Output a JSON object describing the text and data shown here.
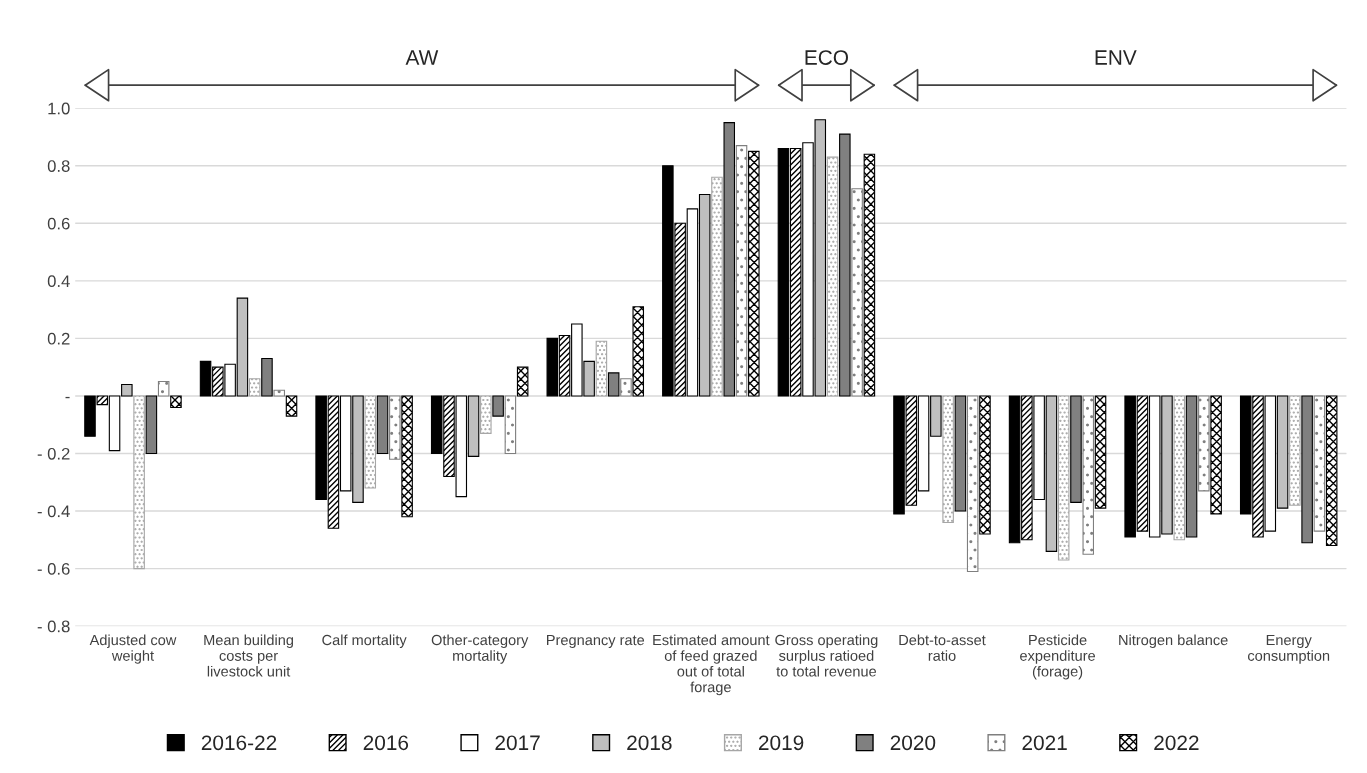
{
  "chart_data": {
    "type": "bar",
    "categories": [
      "Adjusted cow weight",
      "Mean building costs per livestock unit",
      "Calf mortality",
      "Other-category mortality",
      "Pregnancy rate",
      "Estimated amount of feed grazed out of total forage",
      "Gross operating surplus ratioed to total revenue",
      "Debt-to-asset ratio",
      "Pesticide expenditure (forage)",
      "Nitrogen balance",
      "Energy consumption"
    ],
    "series": [
      {
        "name": "2016-22",
        "color": "#000000",
        "values": [
          -0.14,
          0.12,
          -0.36,
          -0.2,
          0.2,
          0.8,
          0.86,
          -0.41,
          -0.51,
          -0.49,
          -0.41
        ]
      },
      {
        "name": "2016",
        "color": "#000000",
        "values": [
          -0.03,
          0.1,
          -0.46,
          -0.28,
          0.21,
          0.6,
          0.86,
          -0.38,
          -0.5,
          -0.47,
          -0.49
        ]
      },
      {
        "name": "2017",
        "color": "#ffffff",
        "values": [
          -0.19,
          0.11,
          -0.33,
          -0.35,
          0.25,
          0.65,
          0.88,
          -0.33,
          -0.36,
          -0.49,
          -0.47
        ]
      },
      {
        "name": "2018",
        "color": "#bfbfbf",
        "values": [
          0.04,
          0.34,
          -0.37,
          -0.21,
          0.12,
          0.7,
          0.96,
          -0.14,
          -0.54,
          -0.48,
          -0.39
        ]
      },
      {
        "name": "2019",
        "color": "#a6a6a6",
        "values": [
          -0.6,
          0.06,
          -0.32,
          -0.13,
          0.19,
          0.76,
          0.83,
          -0.44,
          -0.57,
          -0.5,
          -0.38
        ]
      },
      {
        "name": "2020",
        "color": "#808080",
        "values": [
          -0.2,
          0.13,
          -0.2,
          -0.07,
          0.08,
          0.95,
          0.91,
          -0.4,
          -0.37,
          -0.49,
          -0.51
        ]
      },
      {
        "name": "2021",
        "color": "#7f7f7f",
        "values": [
          0.05,
          0.02,
          -0.22,
          -0.2,
          0.06,
          0.87,
          0.72,
          -0.61,
          -0.55,
          -0.33,
          -0.47
        ]
      },
      {
        "name": "2022",
        "color": "#000000",
        "values": [
          -0.04,
          -0.07,
          -0.42,
          0.1,
          0.31,
          0.85,
          0.84,
          -0.48,
          -0.39,
          -0.41,
          -0.52
        ]
      }
    ],
    "ylim": [
      -0.8,
      1.0
    ],
    "yticks": [
      {
        "value": -0.8,
        "label": "- 0.8"
      },
      {
        "value": -0.6,
        "label": "- 0.6"
      },
      {
        "value": -0.4,
        "label": "- 0.4"
      },
      {
        "value": -0.2,
        "label": "- 0.2"
      },
      {
        "value": 0,
        "label": "-"
      },
      0.2,
      0.4,
      0.6,
      0.8,
      {
        "value": 1.0,
        "label": "1.0"
      }
    ],
    "annotations": [
      "AW",
      "ECO",
      "ENV"
    ],
    "grid": "y",
    "legend": "bottom"
  }
}
